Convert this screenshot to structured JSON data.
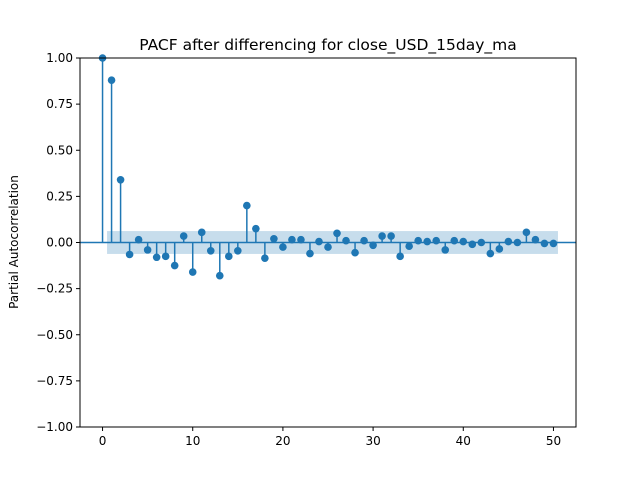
{
  "chart_data": {
    "type": "stem",
    "title": "PACF after differencing for close_USD_15day_ma",
    "xlabel": "",
    "ylabel": "Partial Autocorrelation",
    "xlim": [
      -2.5,
      52.5
    ],
    "ylim": [
      -1.0,
      1.0
    ],
    "x_ticks": [
      0,
      10,
      20,
      30,
      40,
      50
    ],
    "x_tick_labels": [
      "0",
      "10",
      "20",
      "30",
      "40",
      "50"
    ],
    "y_ticks": [
      -1.0,
      -0.75,
      -0.5,
      -0.25,
      0.0,
      0.25,
      0.5,
      0.75,
      1.0
    ],
    "y_tick_labels": [
      "−1.00",
      "−0.75",
      "−0.50",
      "−0.25",
      "0.00",
      "0.25",
      "0.50",
      "0.75",
      "1.00"
    ],
    "grid": false,
    "lags": [
      0,
      1,
      2,
      3,
      4,
      5,
      6,
      7,
      8,
      9,
      10,
      11,
      12,
      13,
      14,
      15,
      16,
      17,
      18,
      19,
      20,
      21,
      22,
      23,
      24,
      25,
      26,
      27,
      28,
      29,
      30,
      31,
      32,
      33,
      34,
      35,
      36,
      37,
      38,
      39,
      40,
      41,
      42,
      43,
      44,
      45,
      46,
      47,
      48,
      49,
      50
    ],
    "values": [
      1.0,
      0.88,
      0.34,
      -0.065,
      0.015,
      -0.04,
      -0.08,
      -0.075,
      -0.125,
      0.035,
      -0.16,
      0.055,
      -0.045,
      -0.18,
      -0.075,
      -0.045,
      0.2,
      0.075,
      -0.085,
      0.02,
      -0.025,
      0.015,
      0.015,
      -0.06,
      0.005,
      -0.025,
      0.05,
      0.01,
      -0.055,
      0.01,
      -0.015,
      0.035,
      0.035,
      -0.075,
      -0.02,
      0.01,
      0.005,
      0.01,
      -0.04,
      0.01,
      0.005,
      -0.01,
      0.0,
      -0.06,
      -0.035,
      0.005,
      0.0,
      0.055,
      0.015,
      -0.005,
      -0.005
    ],
    "confidence_band": [
      -0.062,
      0.062
    ],
    "colors": {
      "stem": "#1f77b4",
      "band": "#1f77b4",
      "zero_line": "#1f77b4"
    }
  }
}
